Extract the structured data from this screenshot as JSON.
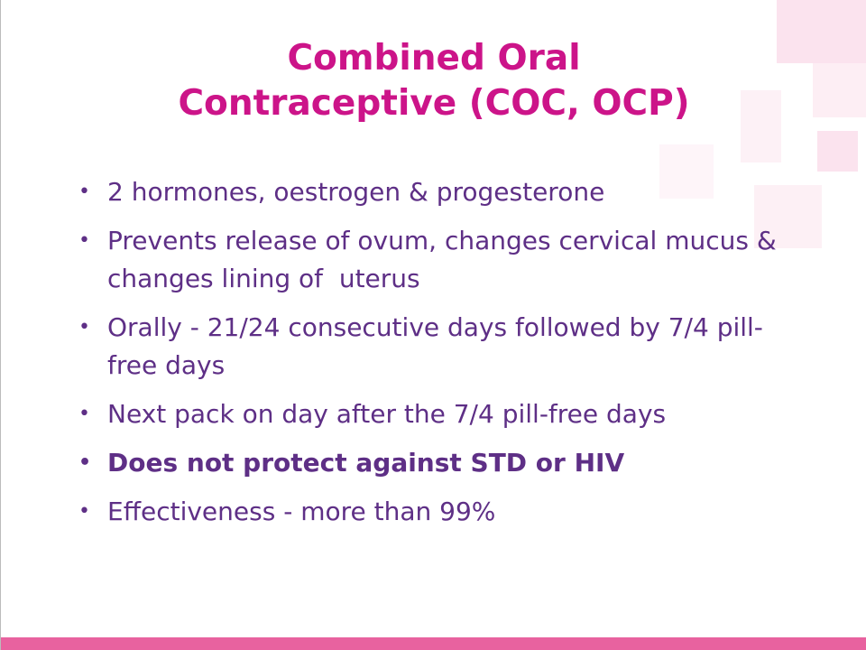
{
  "title": {
    "lines": [
      "Combined Oral",
      "Contraceptive (COC, OCP)"
    ]
  },
  "bullets": [
    "2 hormones, oestrogen & progesterone",
    "Prevents release of ovum, changes cervical mucus & changes lining of  uterus",
    "Orally - 21/24 consecutive days followed by 7/4 pill-free days",
    "Next pack on day after the 7/4 pill-free days",
    "Does not protect against STD or HIV",
    "Effectiveness - more than 99%"
  ]
}
